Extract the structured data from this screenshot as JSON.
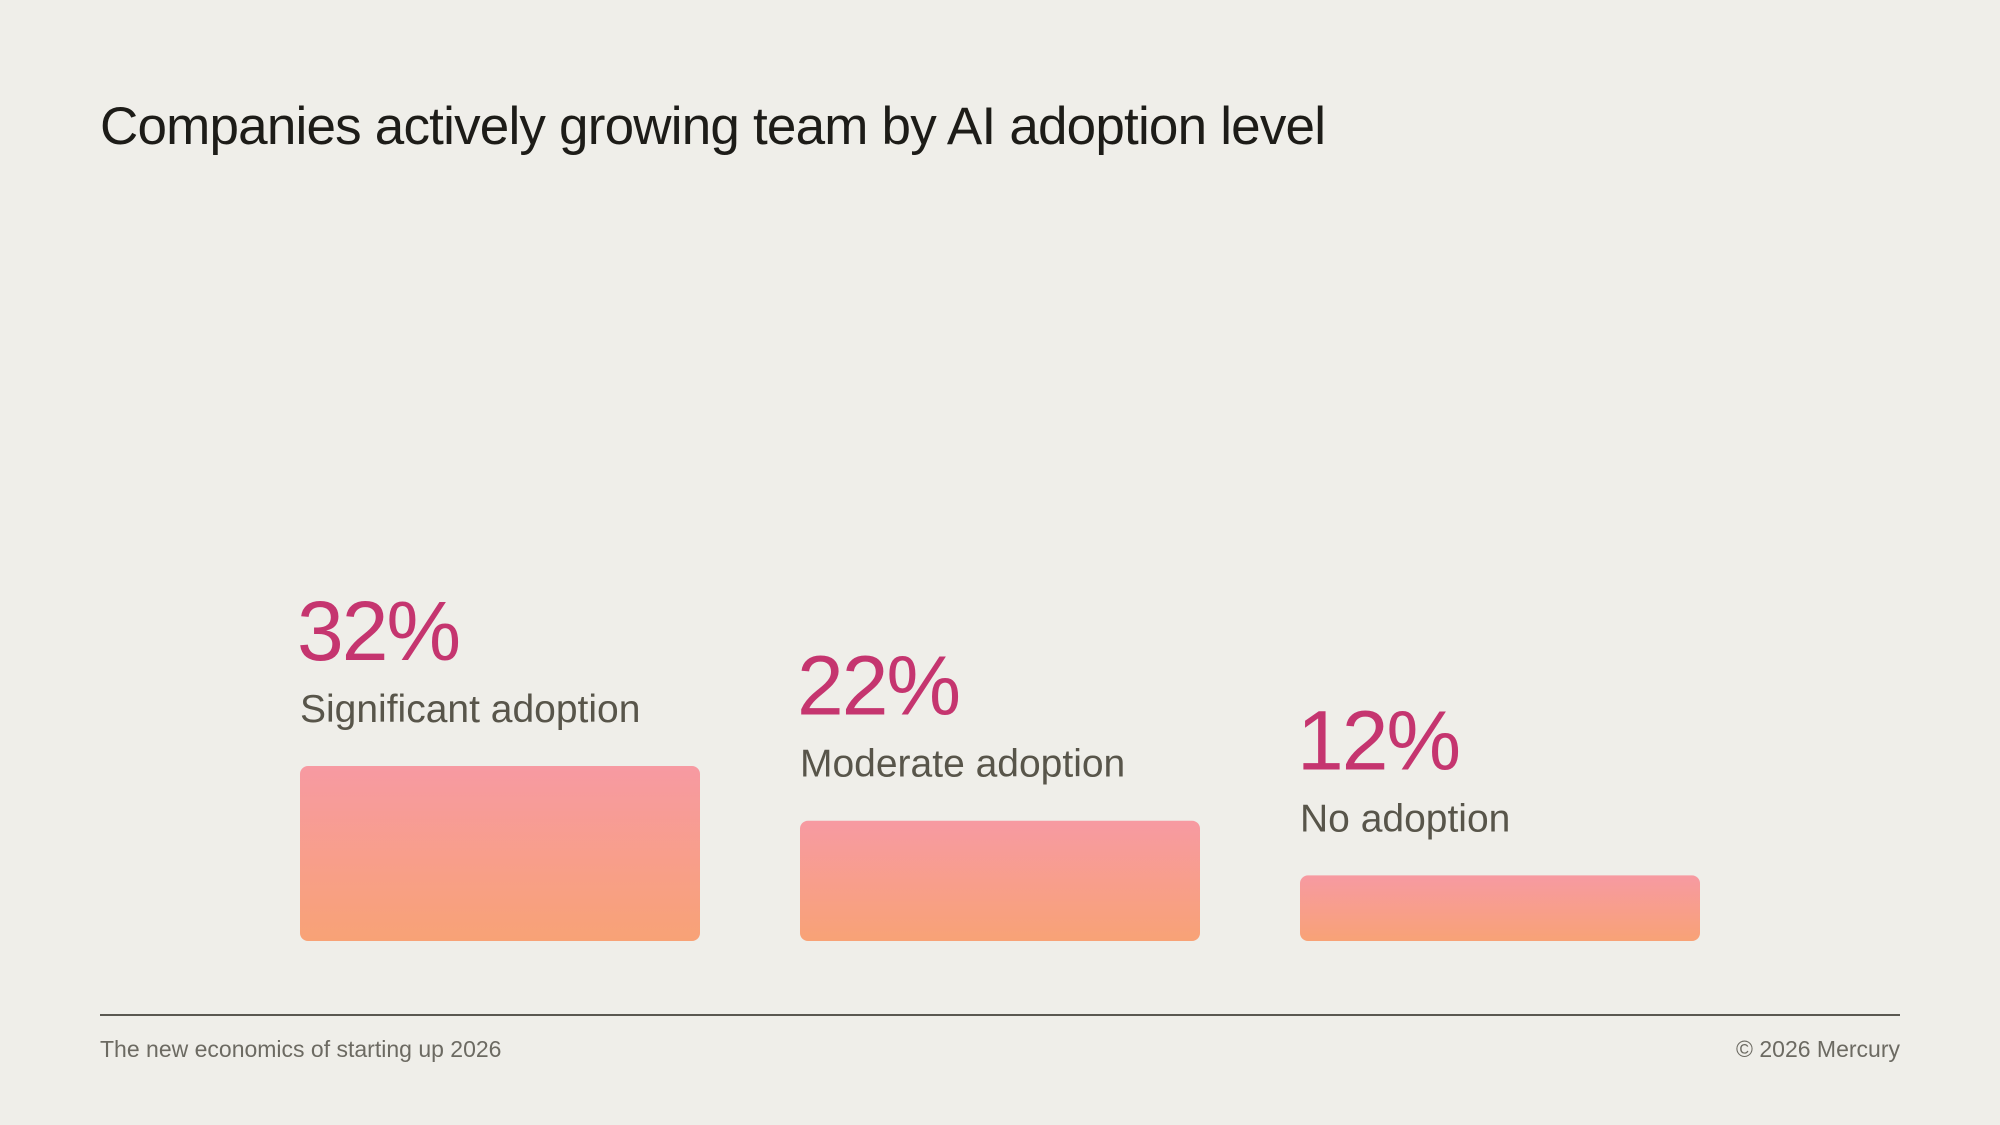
{
  "title": "Companies actively growing team by AI adoption level",
  "footer": {
    "left": "The new economics of starting up 2026",
    "right": "© 2026 Mercury"
  },
  "colors": {
    "background": "#efeee9",
    "value_text": "#c5356f",
    "label_text": "#58554a",
    "bar_top": "#f79aa2",
    "bar_bottom": "#f8a276"
  },
  "chart_data": {
    "type": "bar",
    "title": "Companies actively growing team by AI adoption level",
    "categories": [
      "Significant adoption",
      "Moderate adoption",
      "No adoption"
    ],
    "values": [
      32,
      22,
      12
    ],
    "value_labels": [
      "32%",
      "22%",
      "12%"
    ],
    "unit": "%",
    "xlabel": "",
    "ylabel": "",
    "grid": false,
    "legend": "none"
  }
}
